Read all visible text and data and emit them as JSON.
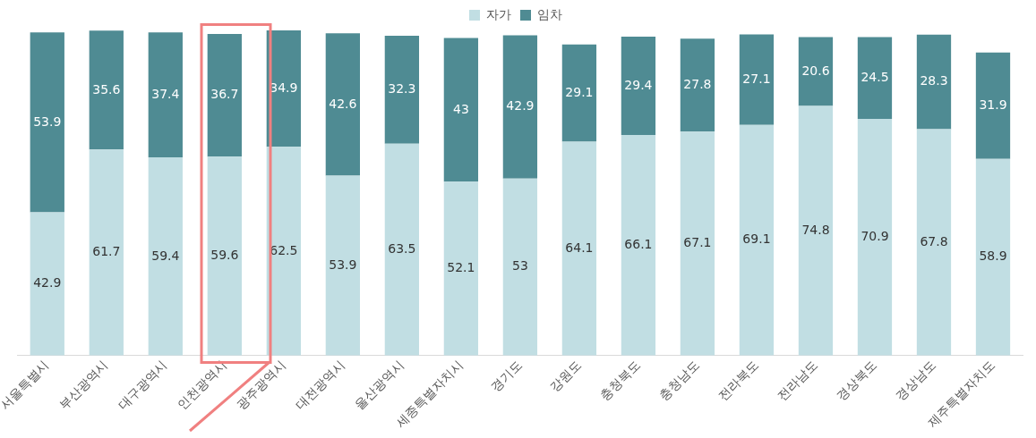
{
  "chart_data": {
    "type": "bar",
    "stacked": true,
    "legend": "top",
    "data_labels": true,
    "grid": false,
    "tick_labels": "x",
    "categories": [
      "서울특별시",
      "부산광역시",
      "대구광역시",
      "인천광역시",
      "광주광역시",
      "대전광역시",
      "울산광역시",
      "세종특별자치시",
      "경기도",
      "강원도",
      "충청북도",
      "충청남도",
      "전라북도",
      "전라남도",
      "경상북도",
      "경상남도",
      "제주특별자치도"
    ],
    "series": [
      {
        "name": "자가",
        "color": "#c1dee3",
        "values": [
          42.9,
          61.7,
          59.4,
          59.6,
          62.5,
          53.9,
          63.5,
          52.1,
          53,
          64.1,
          66.1,
          67.1,
          69.1,
          74.8,
          70.9,
          67.8,
          58.9
        ]
      },
      {
        "name": "임차",
        "color": "#4f8b93",
        "values": [
          53.9,
          35.6,
          37.4,
          36.7,
          34.9,
          42.6,
          32.3,
          43,
          42.9,
          29.1,
          29.4,
          27.8,
          27.1,
          20.6,
          24.5,
          28.3,
          31.9
        ]
      }
    ]
  }
}
